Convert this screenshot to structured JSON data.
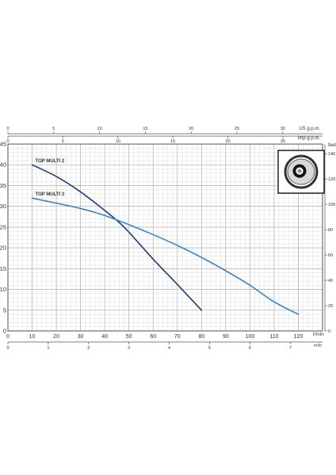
{
  "chart_data": {
    "type": "line",
    "x_unit": "l/min",
    "x_range": [
      0,
      130
    ],
    "x_ticks": [
      0,
      10,
      20,
      30,
      40,
      50,
      60,
      70,
      80,
      90,
      100,
      110,
      120
    ],
    "y_unit": "m",
    "y_range": [
      0,
      45
    ],
    "y_ticks": [
      0,
      5,
      10,
      15,
      20,
      25,
      30,
      35,
      40,
      45
    ],
    "grid": true,
    "series": [
      {
        "name": "TOP MULTI 2",
        "color": "#1d3c78",
        "x": [
          10,
          20,
          30,
          40,
          48,
          60,
          70,
          80
        ],
        "y": [
          40,
          37.2,
          33.5,
          29,
          25,
          17.3,
          11.2,
          5
        ]
      },
      {
        "name": "TOP MULTI 3",
        "color": "#3a86c8",
        "x": [
          10,
          30,
          40,
          50,
          60,
          70,
          80,
          90,
          100,
          110,
          120
        ],
        "y": [
          32,
          29.5,
          27.8,
          25.6,
          23.2,
          20.6,
          17.7,
          14.5,
          11,
          7,
          4
        ]
      }
    ],
    "secondary_axes": {
      "us_gpm": {
        "label": "US g.p.m.",
        "ticks": [
          0,
          5,
          10,
          15,
          20,
          25,
          30
        ]
      },
      "imp_gpm": {
        "label": "Imp g.p.m.",
        "ticks": [
          0,
          5,
          10,
          15,
          20,
          25
        ]
      },
      "m3h": {
        "label": "m³/h",
        "ticks": [
          0,
          1,
          2,
          3,
          4,
          5,
          6,
          7
        ]
      },
      "feet": {
        "label": "feet",
        "ticks": [
          0,
          20,
          40,
          60,
          80,
          100,
          120,
          140
        ]
      }
    },
    "labels": {
      "x_unit_label": "l/min",
      "y_unit_label": "m",
      "feet_label": "feet"
    }
  }
}
